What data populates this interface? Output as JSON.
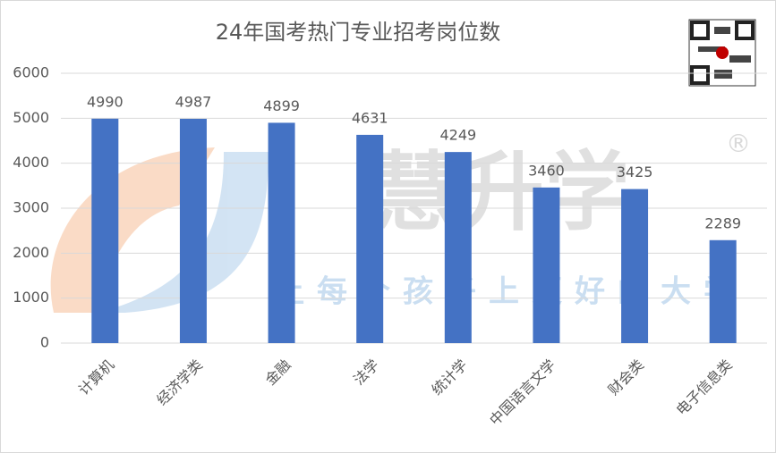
{
  "chart_data": {
    "type": "bar",
    "title": "24年国考热门专业招考岗位数",
    "categories": [
      "计算机",
      "经济学类",
      "金融",
      "法学",
      "统计学",
      "中国语言文学",
      "财会类",
      "电子信息类"
    ],
    "values": [
      4990,
      4987,
      4899,
      4631,
      4249,
      3460,
      3425,
      2289
    ],
    "color": "#4472c4",
    "ylim": [
      0,
      6000
    ],
    "yticks": [
      0,
      1000,
      2000,
      3000,
      4000,
      5000,
      6000
    ],
    "grid": true,
    "watermark": "慧升学",
    "watermark_mark": "®",
    "watermark_slogan": "让每个孩子上更好的大学"
  }
}
